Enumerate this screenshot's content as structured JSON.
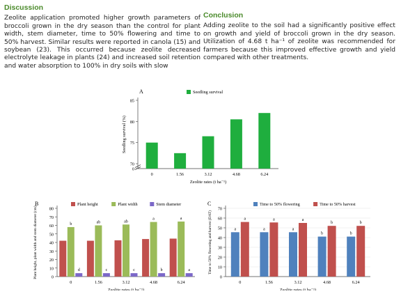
{
  "discussion": {
    "heading": "Discussion",
    "body": "Zeolite application promoted higher growth parameters of broccoli grown in the dry season than the control for plant width, stem diameter, time to 50% flowering and time to 50% harvest. Similar results were reported in canola (15) and soybean (23). This occurred because zeolite decreased electrolyte leakage in plants (24) and increased soil retention and water absorption to 100% in dry soils with slow"
  },
  "conclusion": {
    "heading": "Conclusion",
    "body": "Adding zeolite to the soil had a significantly positive effect on growth and yield of broccoli grown in the dry season. Utilization of 4.68 t ha⁻¹ of zeolite was recommended for farmers because this improved effective growth and yield compared with other treatments."
  },
  "chart_data": [
    {
      "panel": "A",
      "type": "bar",
      "categories": [
        "0",
        "1.56",
        "3.12",
        "4.68",
        "6.24"
      ],
      "series": [
        {
          "name": "Seedling survival",
          "color": "#1fae3e",
          "values": [
            75,
            72.5,
            76.5,
            80.5,
            82
          ]
        }
      ],
      "xlabel": "Zeolite rates (t ha⁻¹)",
      "ylabel": "Seedling survival (%)",
      "yticks": [
        "0",
        "70",
        "75",
        "80",
        "85"
      ],
      "ylim": [
        70,
        85
      ],
      "axis_break": true,
      "legend": "top"
    },
    {
      "panel": "B",
      "type": "bar",
      "categories": [
        "0",
        "1.56",
        "3.12",
        "4.68",
        "6.24"
      ],
      "series": [
        {
          "name": "Plant height",
          "color": "#c0504d",
          "values": [
            42,
            42,
            42.5,
            44,
            44.5
          ]
        },
        {
          "name": "Plant width",
          "color": "#9bbb59",
          "values": [
            58,
            60,
            61,
            64,
            64.5
          ],
          "labels": [
            "b",
            "ab",
            "ab",
            "a",
            "a"
          ]
        },
        {
          "name": "Stem diameter",
          "color": "#7b68c8",
          "values": [
            4,
            4,
            4,
            4,
            4
          ],
          "labels": [
            "d",
            "c",
            "c",
            "b",
            "a"
          ]
        }
      ],
      "xlabel": "Zeolite rates (t ha⁻¹)",
      "ylabel": "Plant height, plant width and stem diameter (cm)",
      "yticks": [
        "0",
        "10",
        "20",
        "30",
        "40",
        "50",
        "60",
        "70",
        "80"
      ],
      "ylim": [
        0,
        80
      ],
      "legend": "top"
    },
    {
      "panel": "C",
      "type": "bar",
      "categories": [
        "0",
        "1.56",
        "3.12",
        "4.68",
        "6.24"
      ],
      "series": [
        {
          "name": "Time to 50% flowering",
          "color": "#4f81bd",
          "values": [
            45.5,
            45.5,
            45.5,
            41,
            41
          ],
          "labels": [
            "a",
            "a",
            "a",
            "b",
            "b"
          ]
        },
        {
          "name": "Time to 50% harvest",
          "color": "#c0504d",
          "values": [
            56,
            55.5,
            55,
            52,
            52
          ],
          "labels": [
            "a",
            "a",
            "a",
            "b",
            "b"
          ]
        }
      ],
      "xlabel": "Zeolite rates (t ha⁻¹)",
      "ylabel": "Time to 50% flowering and harvest (DAT)",
      "yticks": [
        "0",
        "10",
        "20",
        "30",
        "40",
        "50",
        "60",
        "70"
      ],
      "ylim": [
        0,
        70
      ],
      "legend": "top",
      "grid": true
    }
  ]
}
